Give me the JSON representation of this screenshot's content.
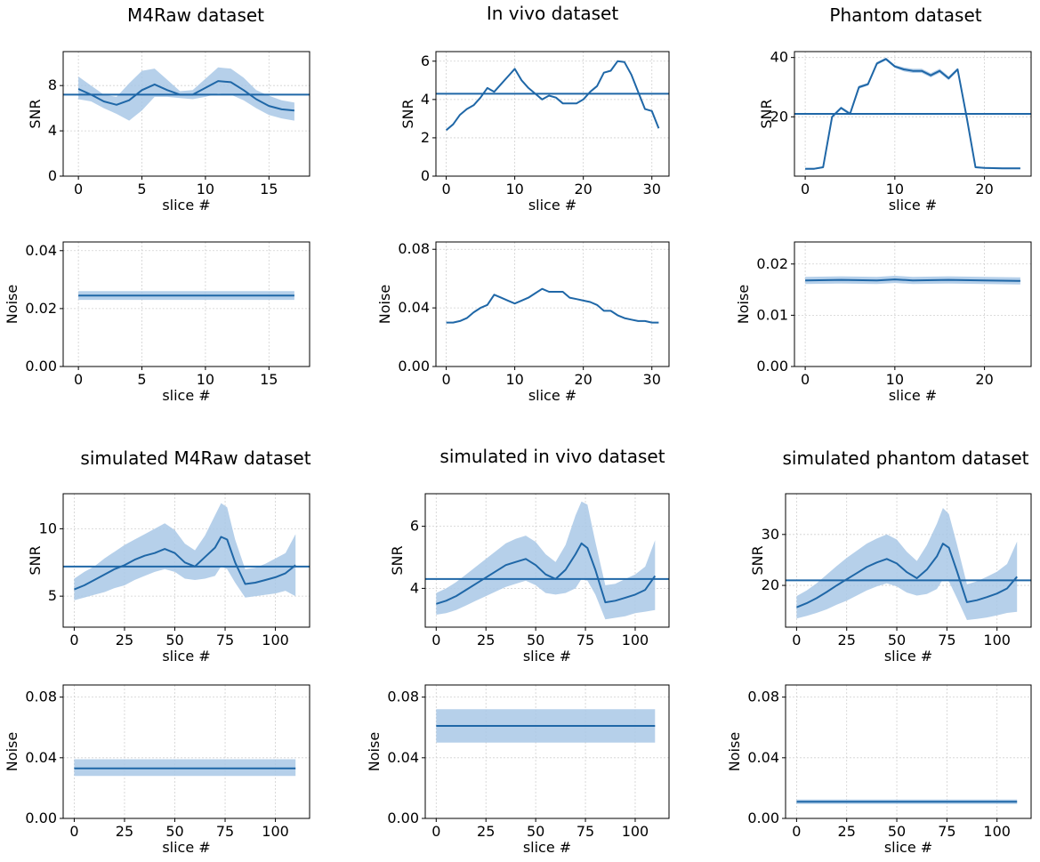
{
  "figure": {
    "column_titles": [
      "M4Raw dataset",
      "In vivo dataset",
      "Phantom dataset",
      "simulated M4Raw dataset",
      "simulated in vivo dataset",
      "simulated phantom dataset"
    ]
  },
  "colors": {
    "line": "#1f67a7",
    "band": "#a9c8e6",
    "grid": "#d0d0d0"
  },
  "chart_data": [
    {
      "id": "m4raw-snr",
      "type": "line",
      "title": "M4Raw dataset",
      "xlabel": "slice #",
      "ylabel": "SNR",
      "xlim": [
        -1.2,
        18.2
      ],
      "ylim": [
        0,
        11
      ],
      "xticks": [
        0,
        5,
        10,
        15
      ],
      "yticks": [
        0,
        4,
        8
      ],
      "x": [
        0,
        1,
        2,
        3,
        4,
        5,
        6,
        7,
        8,
        9,
        10,
        11,
        12,
        13,
        14,
        15,
        16,
        17
      ],
      "y": [
        7.7,
        7.2,
        6.6,
        6.3,
        6.7,
        7.6,
        8.1,
        7.6,
        7.2,
        7.2,
        7.8,
        8.4,
        8.3,
        7.6,
        6.8,
        6.2,
        5.9,
        5.8
      ],
      "band_lower": [
        6.8,
        6.6,
        6.0,
        5.5,
        4.9,
        5.8,
        7.0,
        7.0,
        6.9,
        6.8,
        7.0,
        7.3,
        7.2,
        6.7,
        6.0,
        5.4,
        5.1,
        4.9
      ],
      "band_upper": [
        8.8,
        8.0,
        7.2,
        7.0,
        8.2,
        9.3,
        9.5,
        8.5,
        7.5,
        7.6,
        8.6,
        9.6,
        9.5,
        8.7,
        7.6,
        7.1,
        6.7,
        6.5
      ],
      "hline": 7.2
    },
    {
      "id": "invivo-snr",
      "type": "line",
      "title": "In vivo dataset",
      "xlabel": "slice #",
      "ylabel": "SNR",
      "xlim": [
        -1.5,
        32.5
      ],
      "ylim": [
        0,
        6.5
      ],
      "xticks": [
        0,
        10,
        20,
        30
      ],
      "yticks": [
        0,
        2,
        4,
        6
      ],
      "x": [
        0,
        1,
        2,
        3,
        4,
        5,
        6,
        7,
        8,
        9,
        10,
        11,
        12,
        13,
        14,
        15,
        16,
        17,
        18,
        19,
        20,
        21,
        22,
        23,
        24,
        25,
        26,
        27,
        28,
        29,
        30,
        31
      ],
      "y": [
        2.4,
        2.7,
        3.2,
        3.5,
        3.7,
        4.1,
        4.6,
        4.4,
        4.8,
        5.2,
        5.6,
        5.0,
        4.6,
        4.3,
        4.0,
        4.2,
        4.1,
        3.8,
        3.8,
        3.8,
        4.0,
        4.4,
        4.7,
        5.4,
        5.5,
        6.0,
        5.95,
        5.3,
        4.4,
        3.5,
        3.4,
        2.5
      ],
      "hline": 4.3
    },
    {
      "id": "phantom-snr",
      "type": "line",
      "title": "Phantom dataset",
      "xlabel": "slice #",
      "ylabel": "SNR",
      "xlim": [
        -1.2,
        25.2
      ],
      "ylim": [
        0,
        42
      ],
      "xticks": [
        0,
        10,
        20
      ],
      "yticks": [
        20,
        40
      ],
      "x": [
        0,
        1,
        2,
        3,
        4,
        5,
        6,
        7,
        8,
        9,
        10,
        11,
        12,
        13,
        14,
        15,
        16,
        17,
        18,
        19,
        20,
        21,
        22,
        23,
        24
      ],
      "y": [
        2.5,
        2.5,
        3,
        20,
        23,
        21,
        30,
        31,
        38,
        39.5,
        37,
        36,
        35.5,
        35.5,
        34,
        35.5,
        33,
        36,
        20,
        3,
        2.8,
        2.7,
        2.6,
        2.6,
        2.6
      ],
      "band_lower": [
        2.2,
        2.2,
        2.7,
        19.5,
        22.5,
        20.5,
        29.5,
        30.5,
        37.5,
        39,
        36.5,
        35.3,
        34.8,
        34.8,
        33.3,
        34.8,
        32.3,
        35.5,
        19.5,
        2.7,
        2.5,
        2.4,
        2.3,
        2.3,
        2.3
      ],
      "band_upper": [
        2.8,
        2.8,
        3.3,
        20.5,
        23.5,
        21.5,
        30.5,
        31.5,
        38.5,
        40,
        37.5,
        36.7,
        36.2,
        36.2,
        34.7,
        36.2,
        33.7,
        36.5,
        20.5,
        3.3,
        3.1,
        3,
        2.9,
        2.9,
        2.9
      ],
      "hline": 21
    },
    {
      "id": "m4raw-noise",
      "type": "line",
      "title": "",
      "xlabel": "slice #",
      "ylabel": "Noise",
      "xlim": [
        -1.2,
        18.2
      ],
      "ylim": [
        0,
        0.043
      ],
      "xticks": [
        0,
        5,
        10,
        15
      ],
      "yticks": [
        0.0,
        0.02,
        0.04
      ],
      "tick_format": 2,
      "x": [
        0,
        17
      ],
      "y": [
        0.0245,
        0.0245
      ],
      "band_lower": [
        0.023,
        0.023
      ],
      "band_upper": [
        0.026,
        0.026
      ]
    },
    {
      "id": "invivo-noise",
      "type": "line",
      "title": "",
      "xlabel": "slice #",
      "ylabel": "Noise",
      "xlim": [
        -1.5,
        32.5
      ],
      "ylim": [
        0,
        0.085
      ],
      "xticks": [
        0,
        10,
        20,
        30
      ],
      "yticks": [
        0.0,
        0.04,
        0.08
      ],
      "tick_format": 2,
      "x": [
        0,
        1,
        2,
        3,
        4,
        5,
        6,
        7,
        8,
        9,
        10,
        11,
        12,
        13,
        14,
        15,
        16,
        17,
        18,
        19,
        20,
        21,
        22,
        23,
        24,
        25,
        26,
        27,
        28,
        29,
        30,
        31
      ],
      "y": [
        0.03,
        0.03,
        0.031,
        0.033,
        0.037,
        0.04,
        0.042,
        0.049,
        0.047,
        0.045,
        0.043,
        0.045,
        0.047,
        0.05,
        0.053,
        0.051,
        0.051,
        0.051,
        0.047,
        0.046,
        0.045,
        0.044,
        0.042,
        0.038,
        0.038,
        0.035,
        0.033,
        0.032,
        0.031,
        0.031,
        0.03,
        0.03
      ]
    },
    {
      "id": "phantom-noise",
      "type": "line",
      "title": "",
      "xlabel": "slice #",
      "ylabel": "Noise",
      "xlim": [
        -1.2,
        25.2
      ],
      "ylim": [
        0,
        0.0243
      ],
      "xticks": [
        0,
        10,
        20
      ],
      "yticks": [
        0.0,
        0.01,
        0.02
      ],
      "tick_format": 2,
      "x": [
        0,
        4,
        8,
        10,
        12,
        16,
        20,
        24
      ],
      "y": [
        0.0168,
        0.0169,
        0.0168,
        0.017,
        0.0168,
        0.0169,
        0.0168,
        0.0167
      ],
      "band_lower": [
        0.0161,
        0.0162,
        0.0161,
        0.0163,
        0.0161,
        0.0162,
        0.0161,
        0.016
      ],
      "band_upper": [
        0.0175,
        0.0176,
        0.0175,
        0.0177,
        0.0175,
        0.0176,
        0.0175,
        0.0174
      ]
    },
    {
      "id": "sim-m4raw-snr",
      "type": "line",
      "title": "simulated M4Raw dataset",
      "xlabel": "slice #",
      "ylabel": "SNR",
      "xlim": [
        -5.5,
        117
      ],
      "ylim": [
        2.7,
        12.6
      ],
      "xticks": [
        0,
        25,
        50,
        75,
        100
      ],
      "yticks": [
        5,
        10
      ],
      "x": [
        0,
        5,
        10,
        15,
        20,
        25,
        30,
        35,
        40,
        45,
        50,
        55,
        60,
        65,
        70,
        73,
        76,
        80,
        85,
        90,
        95,
        100,
        105,
        110
      ],
      "y": [
        5.5,
        5.8,
        6.2,
        6.6,
        7.0,
        7.3,
        7.7,
        8.0,
        8.2,
        8.5,
        8.2,
        7.5,
        7.2,
        7.9,
        8.6,
        9.4,
        9.2,
        7.5,
        5.9,
        6.0,
        6.2,
        6.4,
        6.7,
        7.3
      ],
      "band_lower": [
        4.7,
        4.9,
        5.1,
        5.3,
        5.6,
        5.8,
        6.2,
        6.5,
        6.8,
        7.0,
        6.8,
        6.3,
        6.2,
        6.3,
        6.5,
        7.2,
        7.0,
        6.0,
        4.9,
        5.0,
        5.1,
        5.2,
        5.4,
        5.0
      ],
      "band_upper": [
        6.3,
        6.8,
        7.2,
        7.8,
        8.3,
        8.8,
        9.2,
        9.6,
        10.0,
        10.4,
        9.9,
        8.9,
        8.4,
        9.5,
        11.0,
        11.9,
        11.6,
        9.2,
        7.0,
        7.1,
        7.4,
        7.8,
        8.2,
        9.6
      ],
      "hline": 7.2
    },
    {
      "id": "sim-invivo-snr",
      "type": "line",
      "title": "simulated in vivo dataset",
      "xlabel": "slice #",
      "ylabel": "SNR",
      "xlim": [
        -5.5,
        117
      ],
      "ylim": [
        2.75,
        7.05
      ],
      "xticks": [
        0,
        25,
        50,
        75,
        100
      ],
      "yticks": [
        4,
        6
      ],
      "x": [
        0,
        5,
        10,
        15,
        20,
        25,
        30,
        35,
        40,
        45,
        50,
        55,
        60,
        65,
        70,
        73,
        76,
        80,
        85,
        90,
        95,
        100,
        105,
        110
      ],
      "y": [
        3.5,
        3.6,
        3.75,
        3.95,
        4.15,
        4.35,
        4.55,
        4.75,
        4.85,
        4.95,
        4.75,
        4.45,
        4.3,
        4.6,
        5.1,
        5.45,
        5.3,
        4.6,
        3.55,
        3.6,
        3.7,
        3.8,
        3.95,
        4.4
      ],
      "band_lower": [
        3.15,
        3.2,
        3.3,
        3.45,
        3.6,
        3.75,
        3.9,
        4.05,
        4.15,
        4.25,
        4.1,
        3.85,
        3.8,
        3.85,
        4.0,
        4.3,
        4.25,
        3.8,
        3.0,
        3.05,
        3.1,
        3.2,
        3.25,
        3.3
      ],
      "band_upper": [
        3.85,
        4.0,
        4.2,
        4.45,
        4.7,
        4.95,
        5.2,
        5.45,
        5.6,
        5.7,
        5.5,
        5.1,
        4.85,
        5.4,
        6.35,
        6.8,
        6.7,
        5.5,
        4.1,
        4.15,
        4.3,
        4.45,
        4.7,
        5.55
      ],
      "hline": 4.3
    },
    {
      "id": "sim-phantom-snr",
      "type": "line",
      "title": "simulated phantom dataset",
      "xlabel": "slice #",
      "ylabel": "SNR",
      "xlim": [
        -5.5,
        117
      ],
      "ylim": [
        11.8,
        38
      ],
      "xticks": [
        0,
        25,
        50,
        75,
        100
      ],
      "yticks": [
        20,
        30
      ],
      "x": [
        0,
        5,
        10,
        15,
        20,
        25,
        30,
        35,
        40,
        45,
        50,
        55,
        60,
        65,
        70,
        73,
        76,
        80,
        85,
        90,
        95,
        100,
        105,
        110
      ],
      "y": [
        15.7,
        16.5,
        17.5,
        18.7,
        20.0,
        21.2,
        22.4,
        23.6,
        24.5,
        25.2,
        24.3,
        22.6,
        21.4,
        23.1,
        25.7,
        28.2,
        27.4,
        22.8,
        16.7,
        17.1,
        17.7,
        18.4,
        19.4,
        21.7
      ],
      "band_lower": [
        13.5,
        14.0,
        14.6,
        15.3,
        16.2,
        17.0,
        18.0,
        19.0,
        19.8,
        20.4,
        19.8,
        18.6,
        18.0,
        18.3,
        19.3,
        21.2,
        20.8,
        17.5,
        13.2,
        13.4,
        13.7,
        14.1,
        14.6,
        14.8
      ],
      "band_upper": [
        17.9,
        19.0,
        20.4,
        22.1,
        23.8,
        25.4,
        26.8,
        28.2,
        29.2,
        30.0,
        29.0,
        26.6,
        24.8,
        27.9,
        32.1,
        35.2,
        34.0,
        28.1,
        20.2,
        20.8,
        21.7,
        22.7,
        24.2,
        28.6
      ],
      "hline": 21
    },
    {
      "id": "sim-m4raw-noise",
      "type": "line",
      "title": "",
      "xlabel": "slice #",
      "ylabel": "Noise",
      "xlim": [
        -5.5,
        117
      ],
      "ylim": [
        0,
        0.088
      ],
      "xticks": [
        0,
        25,
        50,
        75,
        100
      ],
      "yticks": [
        0.0,
        0.04,
        0.08
      ],
      "tick_format": 2,
      "x": [
        0,
        110
      ],
      "y": [
        0.033,
        0.033
      ],
      "band_lower": [
        0.028,
        0.028
      ],
      "band_upper": [
        0.039,
        0.039
      ]
    },
    {
      "id": "sim-invivo-noise",
      "type": "line",
      "title": "",
      "xlabel": "slice #",
      "ylabel": "Noise",
      "xlim": [
        -5.5,
        117
      ],
      "ylim": [
        0,
        0.088
      ],
      "xticks": [
        0,
        25,
        50,
        75,
        100
      ],
      "yticks": [
        0.0,
        0.04,
        0.08
      ],
      "tick_format": 2,
      "x": [
        0,
        110
      ],
      "y": [
        0.061,
        0.061
      ],
      "band_lower": [
        0.05,
        0.05
      ],
      "band_upper": [
        0.072,
        0.072
      ]
    },
    {
      "id": "sim-phantom-noise",
      "type": "line",
      "title": "",
      "xlabel": "slice #",
      "ylabel": "Noise",
      "xlim": [
        -5.5,
        117
      ],
      "ylim": [
        0,
        0.088
      ],
      "xticks": [
        0,
        25,
        50,
        75,
        100
      ],
      "yticks": [
        0.0,
        0.04,
        0.08
      ],
      "tick_format": 2,
      "x": [
        0,
        110
      ],
      "y": [
        0.011,
        0.011
      ],
      "band_lower": [
        0.0095,
        0.0095
      ],
      "band_upper": [
        0.0125,
        0.0125
      ]
    }
  ]
}
